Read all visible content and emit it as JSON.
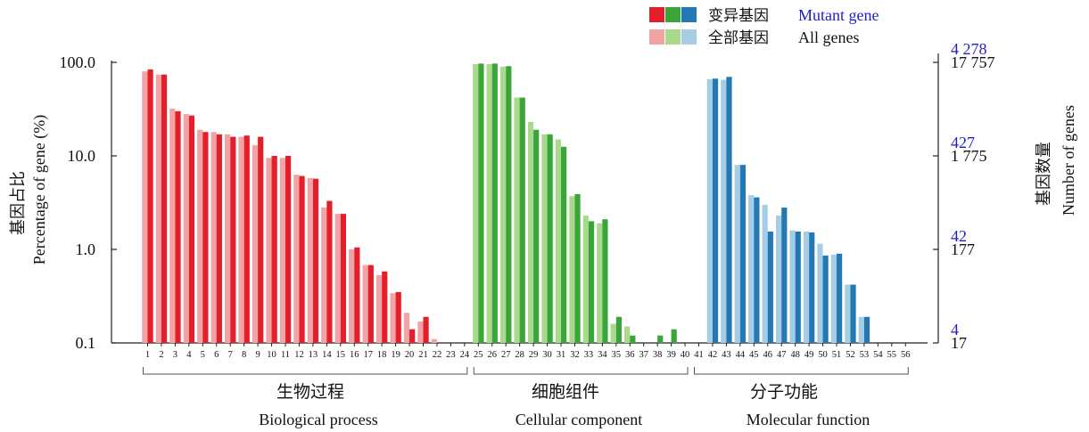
{
  "chart_data": {
    "type": "bar",
    "scale": "log",
    "legend": {
      "placement": "top-right",
      "mutant_label": "变异基因",
      "mutant_label_en": "Mutant gene",
      "all_label": "全部基因",
      "all_label_en": "All genes"
    },
    "ylabel_cn": "基因占比",
    "ylabel_en": "Percentage of gene (%)",
    "y2label_cn": "基因数量",
    "y2label_en": "Number of genes",
    "ylim": [
      0.1,
      100
    ],
    "yticks": [
      {
        "value": 100,
        "label": "100.0"
      },
      {
        "value": 10,
        "label": "10.0"
      },
      {
        "value": 1,
        "label": "1.0"
      },
      {
        "value": 0.1,
        "label": "0.1"
      }
    ],
    "y2ticks_mutant": [
      {
        "value": 100,
        "label": "4 278"
      },
      {
        "value": 10,
        "label": "427"
      },
      {
        "value": 1,
        "label": "42"
      },
      {
        "value": 0.1,
        "label": "4"
      }
    ],
    "y2ticks_all": [
      {
        "value": 100,
        "label": "17 757"
      },
      {
        "value": 10,
        "label": "1 775"
      },
      {
        "value": 1,
        "label": "177"
      },
      {
        "value": 0.1,
        "label": "17"
      }
    ],
    "groups": [
      {
        "cn": "生物过程",
        "en": "Biological process",
        "from": 1,
        "to": 24
      },
      {
        "cn": "细胞组件",
        "en": "Cellular component",
        "from": 25,
        "to": 40
      },
      {
        "cn": "分子功能",
        "en": "Molecular function",
        "from": 41,
        "to": 56
      }
    ],
    "categories": [
      "1",
      "2",
      "3",
      "4",
      "5",
      "6",
      "7",
      "8",
      "9",
      "10",
      "11",
      "12",
      "13",
      "14",
      "15",
      "16",
      "17",
      "18",
      "19",
      "20",
      "21",
      "22",
      "23",
      "24",
      "25",
      "26",
      "27",
      "28",
      "29",
      "30",
      "31",
      "32",
      "33",
      "34",
      "35",
      "36",
      "37",
      "38",
      "39",
      "40",
      "41",
      "42",
      "43",
      "44",
      "45",
      "46",
      "47",
      "48",
      "49",
      "50",
      "51",
      "52",
      "53",
      "54",
      "55",
      "56"
    ],
    "series": [
      {
        "name": "全部基因 All genes",
        "values": [
          80,
          74,
          32,
          28,
          19,
          18,
          17,
          16,
          13,
          9.5,
          9.5,
          6.3,
          5.8,
          2.8,
          2.4,
          1.0,
          0.68,
          0.53,
          0.34,
          0.21,
          0.17,
          0.11,
          0.1,
          0.1,
          96,
          96,
          90,
          42,
          23,
          17,
          15,
          3.7,
          2.3,
          1.9,
          0.16,
          0.15,
          0.1,
          0.1,
          0.1,
          0.1,
          0.1,
          66,
          65,
          8.0,
          3.8,
          3.0,
          2.3,
          1.6,
          1.55,
          1.15,
          0.88,
          0.42,
          0.19,
          0.1,
          0.1,
          0.1
        ]
      },
      {
        "name": "变异基因 Mutant gene",
        "values": [
          84,
          74,
          30,
          27,
          18,
          17,
          16,
          16.5,
          16,
          10,
          10,
          6.1,
          5.7,
          3.3,
          2.4,
          1.05,
          0.68,
          0.58,
          0.35,
          0.14,
          0.19,
          0.1,
          0.1,
          0.1,
          97,
          97,
          91,
          42,
          19,
          17,
          12.5,
          3.9,
          2.0,
          2.1,
          0.19,
          0.12,
          0.1,
          0.12,
          0.14,
          0.1,
          0.1,
          67,
          70,
          8.0,
          3.6,
          1.55,
          2.8,
          1.55,
          1.52,
          0.86,
          0.9,
          0.42,
          0.19,
          0.1,
          0.1,
          0.1
        ]
      }
    ],
    "colors": {
      "bp_all": "#f4a3a5",
      "bp_mut": "#e41f2a",
      "cc_all": "#a9d98a",
      "cc_mut": "#3aa63a",
      "mf_all": "#a6cde6",
      "mf_mut": "#2479b5",
      "axis": "#222222",
      "right_blue": "#1e1ec8"
    }
  }
}
